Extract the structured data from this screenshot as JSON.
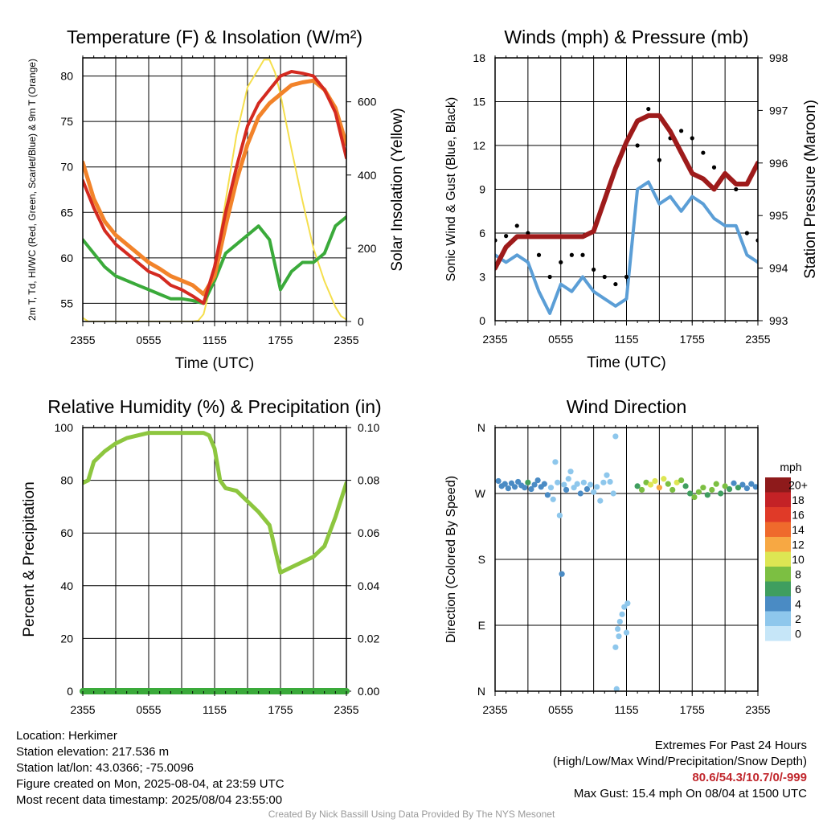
{
  "colors": {
    "red": "#d42a20",
    "green": "#3aaa3a",
    "orange": "#f2832a",
    "yellow": "#f5df4d",
    "blue": "#5b9ed6",
    "maroon": "#9e1b1b",
    "black": "#000000",
    "rh": "#8dc63f",
    "precip": "#3aaa3a",
    "extremes": "#c1272d"
  },
  "chart_data": [
    {
      "id": "temp",
      "type": "line",
      "title": "Temperature (F) & Insolation (W/m²)",
      "xlabel": "Time (UTC)",
      "ylabel": "2m T, Td, HI/WC (Red, Green, Scarlet/Blue) & 9m T (Orange)",
      "ylabel_right": "Solar Insolation (Yellow)",
      "x_ticks": [
        "2355",
        "0555",
        "1155",
        "1755",
        "2355"
      ],
      "y_ticks": [
        55,
        60,
        65,
        70,
        75,
        80
      ],
      "ylim": [
        53,
        82
      ],
      "y2_ticks": [
        0,
        200,
        400,
        600
      ],
      "y2lim": [
        0,
        720
      ],
      "xlim_hours": [
        0,
        24
      ],
      "grid": true,
      "series": [
        {
          "name": "2m T",
          "color_key": "red",
          "axis": "left",
          "x": [
            0,
            1,
            2,
            3,
            4,
            5,
            6,
            7,
            8,
            9,
            10,
            11,
            12,
            13,
            14,
            15,
            16,
            17,
            18,
            19,
            20,
            21,
            22,
            23,
            24
          ],
          "y": [
            68.5,
            65.5,
            63.0,
            61.5,
            60.5,
            59.5,
            58.5,
            58.0,
            57.0,
            56.5,
            55.8,
            55.0,
            59.0,
            65.0,
            70.0,
            74.5,
            77.0,
            78.5,
            80.0,
            80.5,
            80.3,
            80.0,
            78.5,
            76.0,
            71.0
          ]
        },
        {
          "name": "9m T",
          "color_key": "orange",
          "axis": "left",
          "x": [
            0,
            1,
            2,
            3,
            4,
            5,
            6,
            7,
            8,
            9,
            10,
            11,
            12,
            13,
            14,
            15,
            16,
            17,
            18,
            19,
            20,
            21,
            22,
            23,
            24
          ],
          "y": [
            70.5,
            66.5,
            64.0,
            62.5,
            61.5,
            60.5,
            59.5,
            58.8,
            58.0,
            57.5,
            57.0,
            56.0,
            58.0,
            63.5,
            68.5,
            72.5,
            75.5,
            77.0,
            78.0,
            79.0,
            79.3,
            79.5,
            78.5,
            76.5,
            72.5
          ]
        },
        {
          "name": "2m Td",
          "color_key": "green",
          "axis": "left",
          "x": [
            0,
            1,
            2,
            3,
            4,
            5,
            6,
            7,
            8,
            9,
            10,
            11,
            12,
            13,
            14,
            15,
            16,
            17,
            18,
            19,
            20,
            21,
            22,
            23,
            24
          ],
          "y": [
            62.0,
            60.5,
            59.0,
            58.0,
            57.5,
            57.0,
            56.5,
            56.0,
            55.5,
            55.5,
            55.3,
            55.0,
            57.5,
            60.5,
            61.5,
            62.5,
            63.5,
            62.0,
            56.5,
            58.5,
            59.5,
            59.5,
            60.5,
            63.5,
            64.5
          ]
        },
        {
          "name": "Solar Insolation",
          "color_key": "yellow",
          "axis": "right",
          "x": [
            0,
            0.5,
            1,
            2,
            3,
            4,
            5,
            6,
            7,
            8,
            9,
            10,
            10.5,
            11,
            12,
            13,
            14,
            15,
            16,
            16.5,
            17,
            17.5,
            18,
            19,
            20,
            21,
            22,
            23,
            23.5,
            24
          ],
          "y": [
            10,
            0,
            0,
            0,
            0,
            0,
            0,
            0,
            0,
            0,
            0,
            0,
            2,
            20,
            140,
            330,
            510,
            640,
            690,
            715,
            715,
            680,
            620,
            470,
            330,
            200,
            110,
            40,
            15,
            5
          ]
        }
      ]
    },
    {
      "id": "wind",
      "type": "line",
      "title": "Winds (mph) & Pressure (mb)",
      "xlabel": "Time (UTC)",
      "ylabel": "Sonic Wind & Gust (Blue, Black)",
      "ylabel_right": "Station Pressure (Maroon)",
      "x_ticks": [
        "2355",
        "0555",
        "1155",
        "1755",
        "2355"
      ],
      "y_ticks": [
        0,
        3,
        6,
        9,
        12,
        15,
        18
      ],
      "ylim": [
        0,
        18
      ],
      "y2_ticks": [
        993,
        994,
        995,
        996,
        997,
        998
      ],
      "y2lim": [
        993,
        998
      ],
      "xlim_hours": [
        0,
        24
      ],
      "grid": true,
      "series": [
        {
          "name": "Sonic Wind",
          "color_key": "blue",
          "axis": "left",
          "x": [
            0,
            1,
            2,
            3,
            4,
            5,
            6,
            7,
            8,
            9,
            10,
            11,
            12,
            13,
            14,
            15,
            16,
            17,
            18,
            19,
            20,
            21,
            22,
            23,
            24
          ],
          "y": [
            4.5,
            4.0,
            4.5,
            4.0,
            2.0,
            0.5,
            2.5,
            2.0,
            3.0,
            2.0,
            1.5,
            1.0,
            1.5,
            9.0,
            9.5,
            8.0,
            8.5,
            7.5,
            8.5,
            8.0,
            7.0,
            6.5,
            6.5,
            4.5,
            4.0
          ]
        },
        {
          "name": "Gust",
          "color_key": "black",
          "axis": "left",
          "x": [
            0,
            1,
            2,
            3,
            4,
            5,
            6,
            7,
            8,
            9,
            10,
            11,
            12,
            13,
            14,
            15,
            16,
            17,
            18,
            19,
            20,
            21,
            22,
            23,
            24
          ],
          "y": [
            5.5,
            5.8,
            6.5,
            6.0,
            4.5,
            3.0,
            4.0,
            4.5,
            4.5,
            3.5,
            3.0,
            2.5,
            3.0,
            12.0,
            14.5,
            11.0,
            12.5,
            13.0,
            12.5,
            11.5,
            10.5,
            10.0,
            9.0,
            6.0,
            5.5
          ]
        },
        {
          "name": "Station Pressure",
          "color_key": "maroon",
          "axis": "right",
          "x": [
            0,
            1,
            2,
            3,
            4,
            5,
            6,
            7,
            8,
            9,
            10,
            11,
            12,
            13,
            14,
            15,
            16,
            17,
            18,
            19,
            20,
            21,
            22,
            23,
            24
          ],
          "y": [
            994.0,
            994.4,
            994.6,
            994.6,
            994.6,
            994.6,
            994.6,
            994.6,
            994.6,
            994.7,
            995.3,
            995.9,
            996.4,
            996.8,
            996.9,
            996.9,
            996.6,
            996.2,
            995.8,
            995.7,
            995.5,
            995.8,
            995.6,
            995.6,
            996.0
          ]
        }
      ]
    },
    {
      "id": "rh",
      "type": "line",
      "title": "Relative Humidity (%) & Precipitation (in)",
      "ylabel": "Percent & Precipitation",
      "x_ticks": [
        "2355",
        "0555",
        "1155",
        "1755",
        "2355"
      ],
      "y_ticks": [
        0,
        20,
        40,
        60,
        80,
        100
      ],
      "ylim": [
        0,
        100
      ],
      "y2_ticks": [
        "0.00",
        "0.02",
        "0.04",
        "0.06",
        "0.08",
        "0.10"
      ],
      "y2lim": [
        0,
        0.1
      ],
      "xlim_hours": [
        0,
        24
      ],
      "grid": true,
      "series": [
        {
          "name": "Relative Humidity",
          "color_key": "rh",
          "axis": "left",
          "x": [
            0,
            0.5,
            1,
            2,
            3,
            4,
            5,
            6,
            7,
            8,
            9,
            10,
            11,
            11.5,
            12,
            12.5,
            13,
            14,
            15,
            16,
            17,
            18,
            19,
            20,
            21,
            22,
            23,
            24
          ],
          "y": [
            79,
            80,
            87,
            91,
            94,
            96,
            97,
            98,
            98,
            98,
            98,
            98,
            98,
            97,
            92,
            80,
            77,
            76,
            72,
            68,
            63,
            45,
            47,
            49,
            51,
            55,
            66,
            79
          ]
        },
        {
          "name": "Precipitation",
          "color_key": "precip",
          "axis": "right",
          "x": [
            0,
            24
          ],
          "y": [
            0,
            0
          ]
        }
      ]
    },
    {
      "id": "direction",
      "type": "scatter",
      "title": "Wind Direction",
      "ylabel": "Direction (Colored By Speed)",
      "x_ticks": [
        "2355",
        "0555",
        "1155",
        "1755",
        "2355"
      ],
      "y_ticks": [
        "N",
        "E",
        "S",
        "W",
        "N"
      ],
      "ylim": [
        0,
        360
      ],
      "xlim_hours": [
        0,
        24
      ],
      "grid": true,
      "legend_title": "mph",
      "legend_labels": [
        "0",
        "2",
        "4",
        "6",
        "8",
        "10",
        "12",
        "14",
        "16",
        "18",
        "20+"
      ],
      "legend_colors": [
        "#c6e6f8",
        "#8ec7ec",
        "#4a8bc4",
        "#3f9e5f",
        "#7cbf42",
        "#dde653",
        "#f7a843",
        "#ef6a2c",
        "#e03a28",
        "#c42226",
        "#8e1a1b"
      ],
      "points": [
        {
          "x": 0.3,
          "y": 287,
          "s": 4
        },
        {
          "x": 0.6,
          "y": 280,
          "s": 4
        },
        {
          "x": 0.9,
          "y": 283,
          "s": 3
        },
        {
          "x": 1.2,
          "y": 277,
          "s": 4
        },
        {
          "x": 1.5,
          "y": 284,
          "s": 4
        },
        {
          "x": 1.8,
          "y": 279,
          "s": 4
        },
        {
          "x": 2.1,
          "y": 286,
          "s": 4
        },
        {
          "x": 2.4,
          "y": 281,
          "s": 3
        },
        {
          "x": 2.7,
          "y": 278,
          "s": 4
        },
        {
          "x": 3.0,
          "y": 285,
          "s": 6
        },
        {
          "x": 3.3,
          "y": 276,
          "s": 4
        },
        {
          "x": 3.6,
          "y": 282,
          "s": 3
        },
        {
          "x": 3.9,
          "y": 288,
          "s": 4
        },
        {
          "x": 4.2,
          "y": 279,
          "s": 4
        },
        {
          "x": 4.5,
          "y": 283,
          "s": 4
        },
        {
          "x": 4.8,
          "y": 268,
          "s": 3
        },
        {
          "x": 5.1,
          "y": 278,
          "s": 2
        },
        {
          "x": 5.3,
          "y": 262,
          "s": 2
        },
        {
          "x": 5.5,
          "y": 313,
          "s": 2
        },
        {
          "x": 5.7,
          "y": 285,
          "s": 2
        },
        {
          "x": 5.9,
          "y": 240,
          "s": 2
        },
        {
          "x": 6.1,
          "y": 160,
          "s": 3
        },
        {
          "x": 6.3,
          "y": 282,
          "s": 2
        },
        {
          "x": 6.5,
          "y": 275,
          "s": 3
        },
        {
          "x": 6.7,
          "y": 290,
          "s": 2
        },
        {
          "x": 6.9,
          "y": 300,
          "s": 2
        },
        {
          "x": 7.2,
          "y": 278,
          "s": 2
        },
        {
          "x": 7.5,
          "y": 283,
          "s": 2
        },
        {
          "x": 7.8,
          "y": 270,
          "s": 3
        },
        {
          "x": 8.1,
          "y": 285,
          "s": 2
        },
        {
          "x": 8.4,
          "y": 276,
          "s": 3
        },
        {
          "x": 8.7,
          "y": 282,
          "s": 2
        },
        {
          "x": 9.0,
          "y": 272,
          "s": 2
        },
        {
          "x": 9.3,
          "y": 279,
          "s": 2
        },
        {
          "x": 9.6,
          "y": 260,
          "s": 2
        },
        {
          "x": 9.9,
          "y": 285,
          "s": 2
        },
        {
          "x": 10.2,
          "y": 295,
          "s": 2
        },
        {
          "x": 10.5,
          "y": 286,
          "s": 1
        },
        {
          "x": 10.8,
          "y": 270,
          "s": 2
        },
        {
          "x": 11.0,
          "y": 348,
          "s": 1
        },
        {
          "x": 11.1,
          "y": 3,
          "s": 1
        },
        {
          "x": 11.2,
          "y": 85,
          "s": 2
        },
        {
          "x": 11.4,
          "y": 95,
          "s": 2
        },
        {
          "x": 11.6,
          "y": 105,
          "s": 2
        },
        {
          "x": 11.8,
          "y": 115,
          "s": 2
        },
        {
          "x": 12.0,
          "y": 80,
          "s": 2
        },
        {
          "x": 11.0,
          "y": 60,
          "s": 1
        },
        {
          "x": 11.3,
          "y": 75,
          "s": 2
        },
        {
          "x": 12.1,
          "y": 120,
          "s": 2
        },
        {
          "x": 13.0,
          "y": 280,
          "s": 6
        },
        {
          "x": 13.4,
          "y": 275,
          "s": 8
        },
        {
          "x": 13.8,
          "y": 285,
          "s": 7
        },
        {
          "x": 14.2,
          "y": 282,
          "s": 10
        },
        {
          "x": 14.6,
          "y": 287,
          "s": 9
        },
        {
          "x": 15.0,
          "y": 278,
          "s": 11
        },
        {
          "x": 15.4,
          "y": 290,
          "s": 9
        },
        {
          "x": 15.8,
          "y": 283,
          "s": 8
        },
        {
          "x": 16.2,
          "y": 275,
          "s": 7
        },
        {
          "x": 16.6,
          "y": 285,
          "s": 9
        },
        {
          "x": 17.0,
          "y": 288,
          "s": 8
        },
        {
          "x": 17.4,
          "y": 280,
          "s": 6
        },
        {
          "x": 17.8,
          "y": 270,
          "s": 6
        },
        {
          "x": 18.2,
          "y": 265,
          "s": 7
        },
        {
          "x": 18.6,
          "y": 272,
          "s": 8
        },
        {
          "x": 19.0,
          "y": 278,
          "s": 7
        },
        {
          "x": 19.4,
          "y": 268,
          "s": 6
        },
        {
          "x": 19.8,
          "y": 275,
          "s": 7
        },
        {
          "x": 20.2,
          "y": 283,
          "s": 8
        },
        {
          "x": 20.6,
          "y": 270,
          "s": 6
        },
        {
          "x": 21.0,
          "y": 280,
          "s": 7
        },
        {
          "x": 21.4,
          "y": 276,
          "s": 6
        },
        {
          "x": 21.8,
          "y": 284,
          "s": 4
        },
        {
          "x": 22.2,
          "y": 278,
          "s": 5
        },
        {
          "x": 22.6,
          "y": 282,
          "s": 4
        },
        {
          "x": 23.0,
          "y": 277,
          "s": 4
        },
        {
          "x": 23.4,
          "y": 283,
          "s": 4
        },
        {
          "x": 23.8,
          "y": 279,
          "s": 4
        }
      ]
    }
  ],
  "info_left": {
    "location": "Location: Herkimer",
    "elevation": "Station elevation: 217.536 m",
    "latlon": "Station lat/lon: 43.0366; -75.0096",
    "created": "Figure created on Mon, 2025-08-04, at 23:59 UTC",
    "recent": "Most recent data timestamp: 2025/08/04 23:55:00"
  },
  "info_right": {
    "title": "Extremes For Past 24 Hours",
    "subtitle": "(High/Low/Max Wind/Precipitation/Snow Depth)",
    "values": "80.6/54.3/10.7/0/-999",
    "gust": "Max Gust: 15.4 mph On 08/04 at 1500 UTC"
  },
  "credit": "Created By Nick Bassill Using Data Provided By The NYS Mesonet"
}
